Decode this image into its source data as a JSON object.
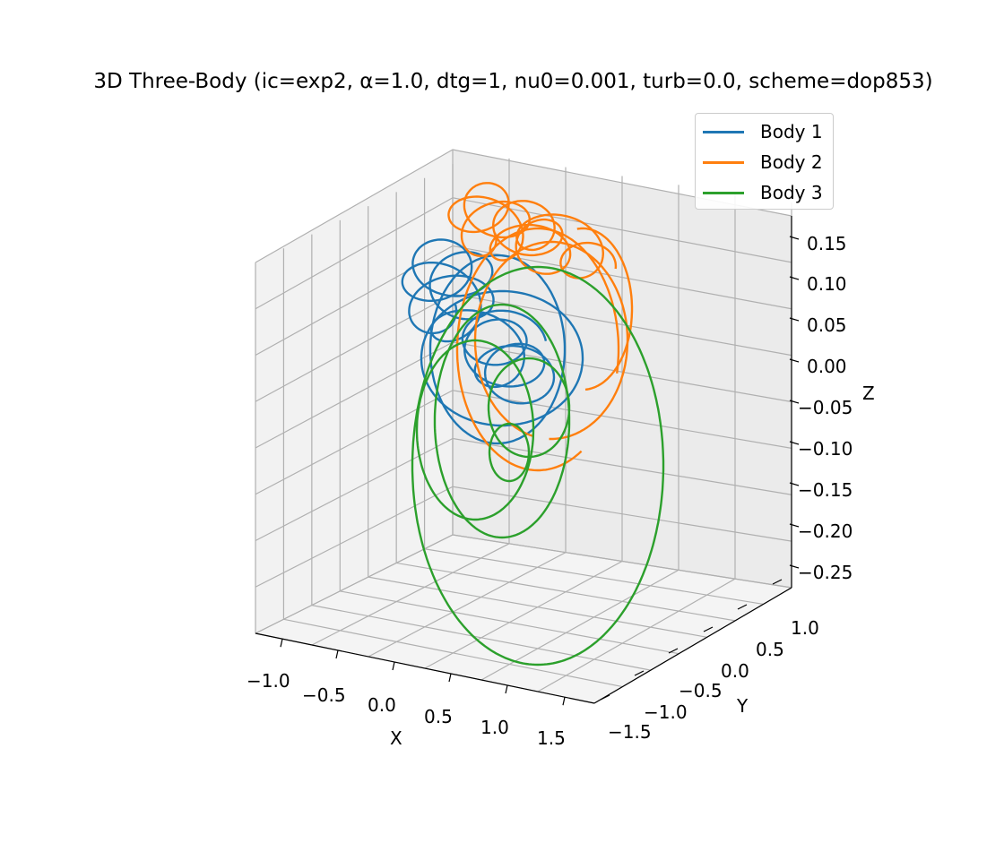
{
  "chart_data": {
    "type": "line",
    "title": "3D Three-Body (ic=exp2, α=1.0, dtg=1, nu0=0.001, turb=0.0, scheme=dop853)",
    "xlabel": "X",
    "ylabel": "Y",
    "zlabel": "Z",
    "xticks": [
      "−1.0",
      "−0.5",
      "0.0",
      "0.5",
      "1.0",
      "1.5"
    ],
    "yticks": [
      "−1.5",
      "−1.0",
      "−0.5",
      "0.0",
      "0.5",
      "1.0"
    ],
    "zticks": [
      "0.15",
      "0.10",
      "0.05",
      "0.00",
      "−0.05",
      "−0.10",
      "−0.15",
      "−0.20",
      "−0.25"
    ],
    "zlim": [
      -0.27,
      0.18
    ],
    "legend_position": "top-right",
    "grid": true,
    "series": [
      {
        "name": "Body 1",
        "color": "#1f77b4"
      },
      {
        "name": "Body 2",
        "color": "#ff7f0e"
      },
      {
        "name": "Body 3",
        "color": "#2ca02c"
      }
    ]
  }
}
